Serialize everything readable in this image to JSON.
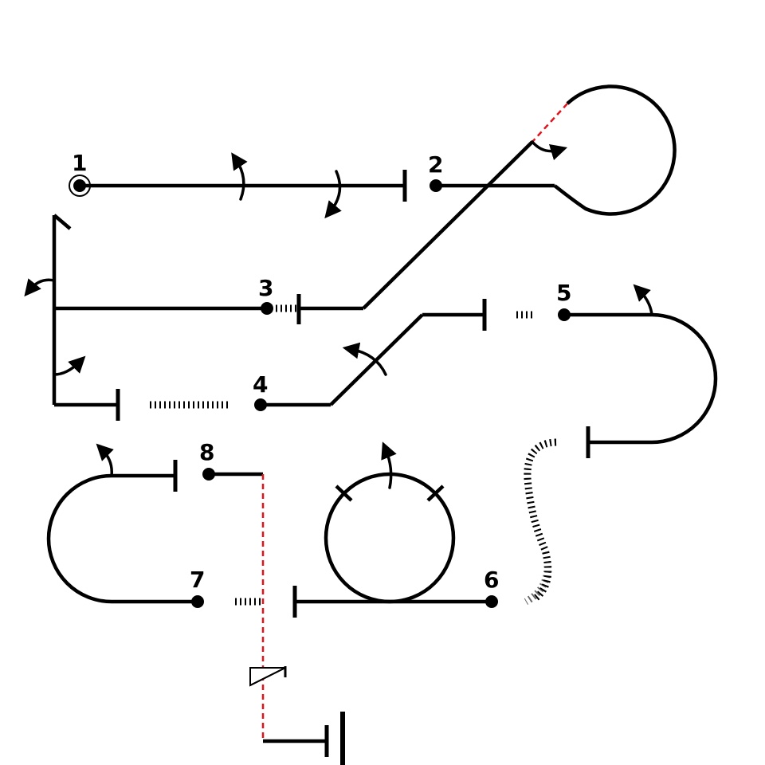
{
  "stations": [
    {
      "id": "station-1",
      "label": "1"
    },
    {
      "id": "station-2",
      "label": "2"
    },
    {
      "id": "station-3",
      "label": "3"
    },
    {
      "id": "station-4",
      "label": "4"
    },
    {
      "id": "station-5",
      "label": "5"
    },
    {
      "id": "station-6",
      "label": "6"
    },
    {
      "id": "station-7",
      "label": "7"
    },
    {
      "id": "station-8",
      "label": "8"
    }
  ],
  "colors": {
    "track": "#000000",
    "dashed_connector": "#e0141c",
    "faded_dots": "#666666",
    "background": "#ffffff"
  },
  "icons": [
    "start-ring-icon",
    "buffer-stop-icon",
    "switch-arrow-icon",
    "signal-flag-icon"
  ]
}
